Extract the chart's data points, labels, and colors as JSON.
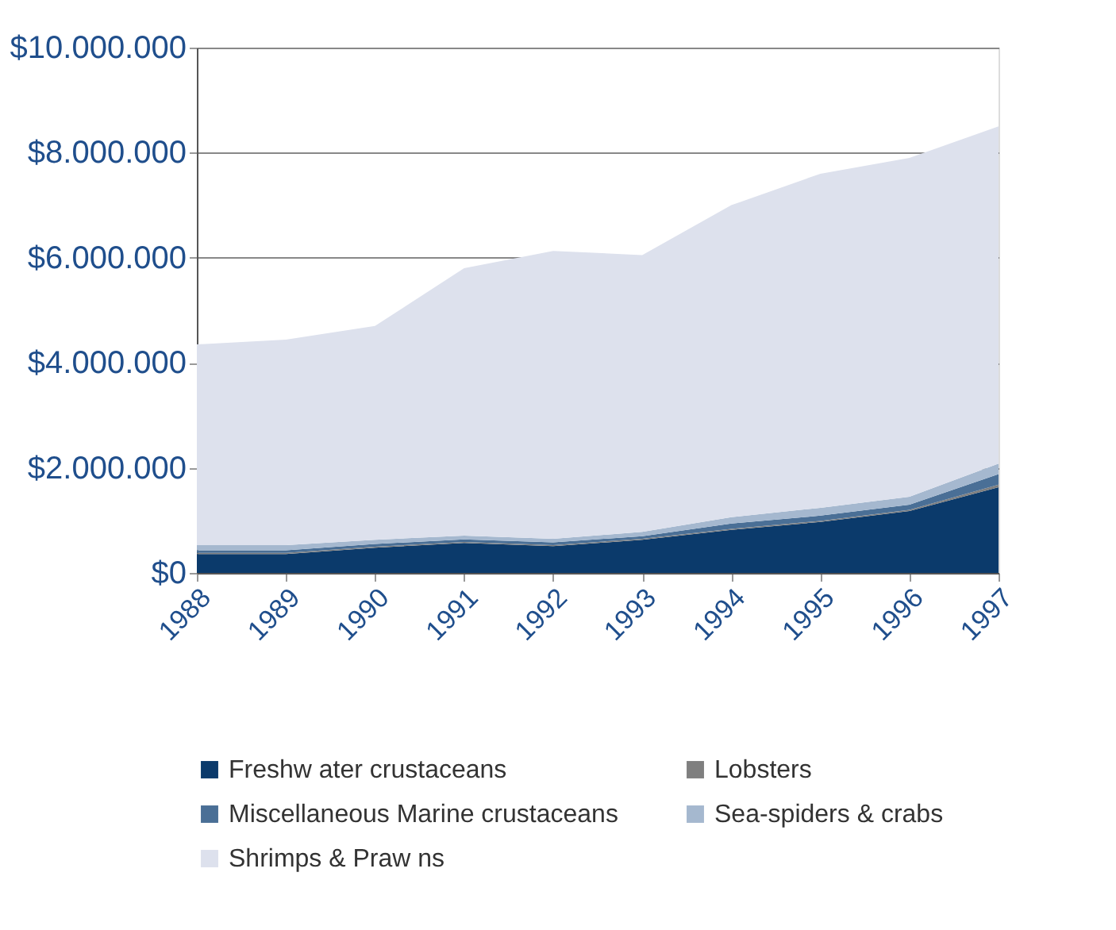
{
  "chart_data": {
    "type": "area",
    "stacked": true,
    "x": [
      1988,
      1989,
      1990,
      1991,
      1992,
      1993,
      1994,
      1995,
      1996,
      1997
    ],
    "xlim": [
      1988,
      1997
    ],
    "xticks": [
      1988,
      1989,
      1990,
      1991,
      1992,
      1993,
      1994,
      1995,
      1996,
      1997
    ],
    "ylim": [
      0,
      10000000
    ],
    "yticks": [
      {
        "value": 0,
        "label": "$0"
      },
      {
        "value": 2000000,
        "label": "$2.000.000"
      },
      {
        "value": 4000000,
        "label": "$4.000.000"
      },
      {
        "value": 6000000,
        "label": "$6.000.000"
      },
      {
        "value": 8000000,
        "label": "$8.000.000"
      },
      {
        "value": 10000000,
        "label": "$10.000.000"
      }
    ],
    "grid": "y",
    "legend": "bottom",
    "series": [
      {
        "name": "Freshw ater crustaceans",
        "color": "#0b3a6b",
        "values": [
          360000,
          360000,
          480000,
          570000,
          510000,
          630000,
          820000,
          970000,
          1180000,
          1630000
        ]
      },
      {
        "name": "Lobsters",
        "color": "#7f7f7f",
        "values": [
          20000,
          20000,
          20000,
          20000,
          20000,
          20000,
          20000,
          20000,
          20000,
          50000
        ]
      },
      {
        "name": "Miscellaneous Marine crustaceans",
        "color": "#4a6f96",
        "values": [
          50000,
          50000,
          50000,
          50000,
          50000,
          50000,
          100000,
          100000,
          100000,
          200000
        ]
      },
      {
        "name": "Sea-spiders & crabs",
        "color": "#a5b8cf",
        "values": [
          100000,
          100000,
          80000,
          70000,
          70000,
          80000,
          120000,
          150000,
          150000,
          200000
        ]
      },
      {
        "name": "Shrimps & Praw ns",
        "color": "#dde1ed",
        "values": [
          3820000,
          3910000,
          4070000,
          5090000,
          5480000,
          5270000,
          5940000,
          6360000,
          6450000,
          6420000
        ]
      }
    ]
  }
}
